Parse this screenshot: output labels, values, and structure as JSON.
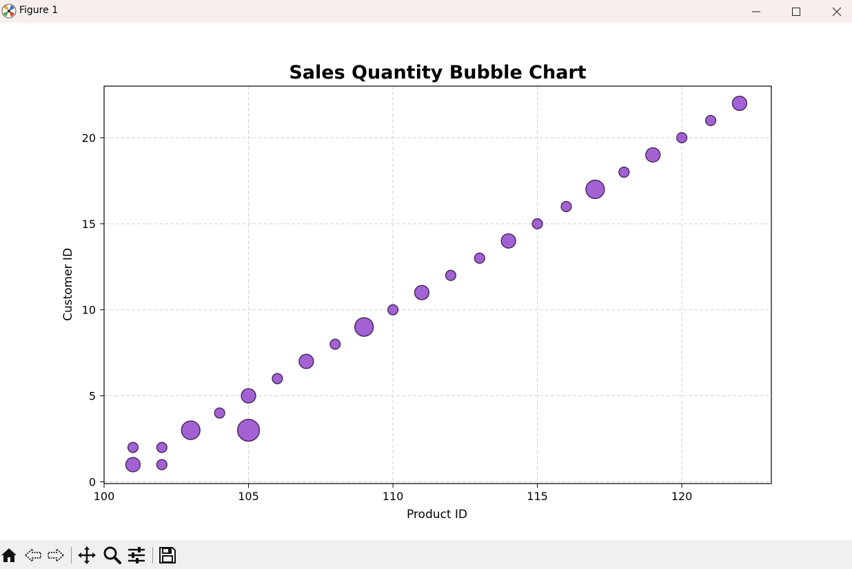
{
  "window": {
    "title": "Figure 1",
    "icons": {
      "app": "matplotlib-logo-icon",
      "minimize": "minimize-icon",
      "maximize": "maximize-icon",
      "close": "close-icon"
    }
  },
  "toolbar": {
    "buttons": [
      "home-icon",
      "back-arrow-icon",
      "forward-arrow-icon",
      "pan-icon",
      "zoom-icon",
      "configure-subplots-icon",
      "save-icon"
    ]
  },
  "colors": {
    "bubble_fill": "#9a55cf",
    "bubble_edge": "#4a2a5e",
    "grid": "#d0d0d0",
    "titlebar": "#f7efee",
    "toolbar": "#f0f0f0"
  },
  "chart_data": {
    "type": "scatter",
    "title": "Sales Quantity Bubble Chart",
    "xlabel": "Product ID",
    "ylabel": "Customer ID",
    "xlim": [
      100,
      123.1
    ],
    "ylim": [
      -0.1,
      23
    ],
    "xticks": [
      100,
      105,
      110,
      115,
      120
    ],
    "yticks": [
      0,
      5,
      10,
      15,
      20
    ],
    "grid": true,
    "grid_style": "dashed",
    "points": [
      {
        "x": 101,
        "y": 1,
        "size": 3
      },
      {
        "x": 101,
        "y": 2,
        "size": 1.5
      },
      {
        "x": 102,
        "y": 1,
        "size": 1.5
      },
      {
        "x": 102,
        "y": 2,
        "size": 1.5
      },
      {
        "x": 103,
        "y": 3,
        "size": 5
      },
      {
        "x": 104,
        "y": 4,
        "size": 1.5
      },
      {
        "x": 105,
        "y": 3,
        "size": 7
      },
      {
        "x": 105,
        "y": 5,
        "size": 3
      },
      {
        "x": 106,
        "y": 6,
        "size": 1.5
      },
      {
        "x": 107,
        "y": 7,
        "size": 3
      },
      {
        "x": 108,
        "y": 8,
        "size": 1.5
      },
      {
        "x": 109,
        "y": 9,
        "size": 5
      },
      {
        "x": 110,
        "y": 10,
        "size": 1.5
      },
      {
        "x": 111,
        "y": 11,
        "size": 3
      },
      {
        "x": 112,
        "y": 12,
        "size": 1.5
      },
      {
        "x": 113,
        "y": 13,
        "size": 1.5
      },
      {
        "x": 114,
        "y": 14,
        "size": 3
      },
      {
        "x": 115,
        "y": 15,
        "size": 1.5
      },
      {
        "x": 116,
        "y": 16,
        "size": 1.5
      },
      {
        "x": 117,
        "y": 17,
        "size": 5
      },
      {
        "x": 118,
        "y": 18,
        "size": 1.5
      },
      {
        "x": 119,
        "y": 19,
        "size": 3
      },
      {
        "x": 120,
        "y": 20,
        "size": 1.5
      },
      {
        "x": 121,
        "y": 21,
        "size": 1.5
      },
      {
        "x": 122,
        "y": 22,
        "size": 3
      }
    ]
  }
}
